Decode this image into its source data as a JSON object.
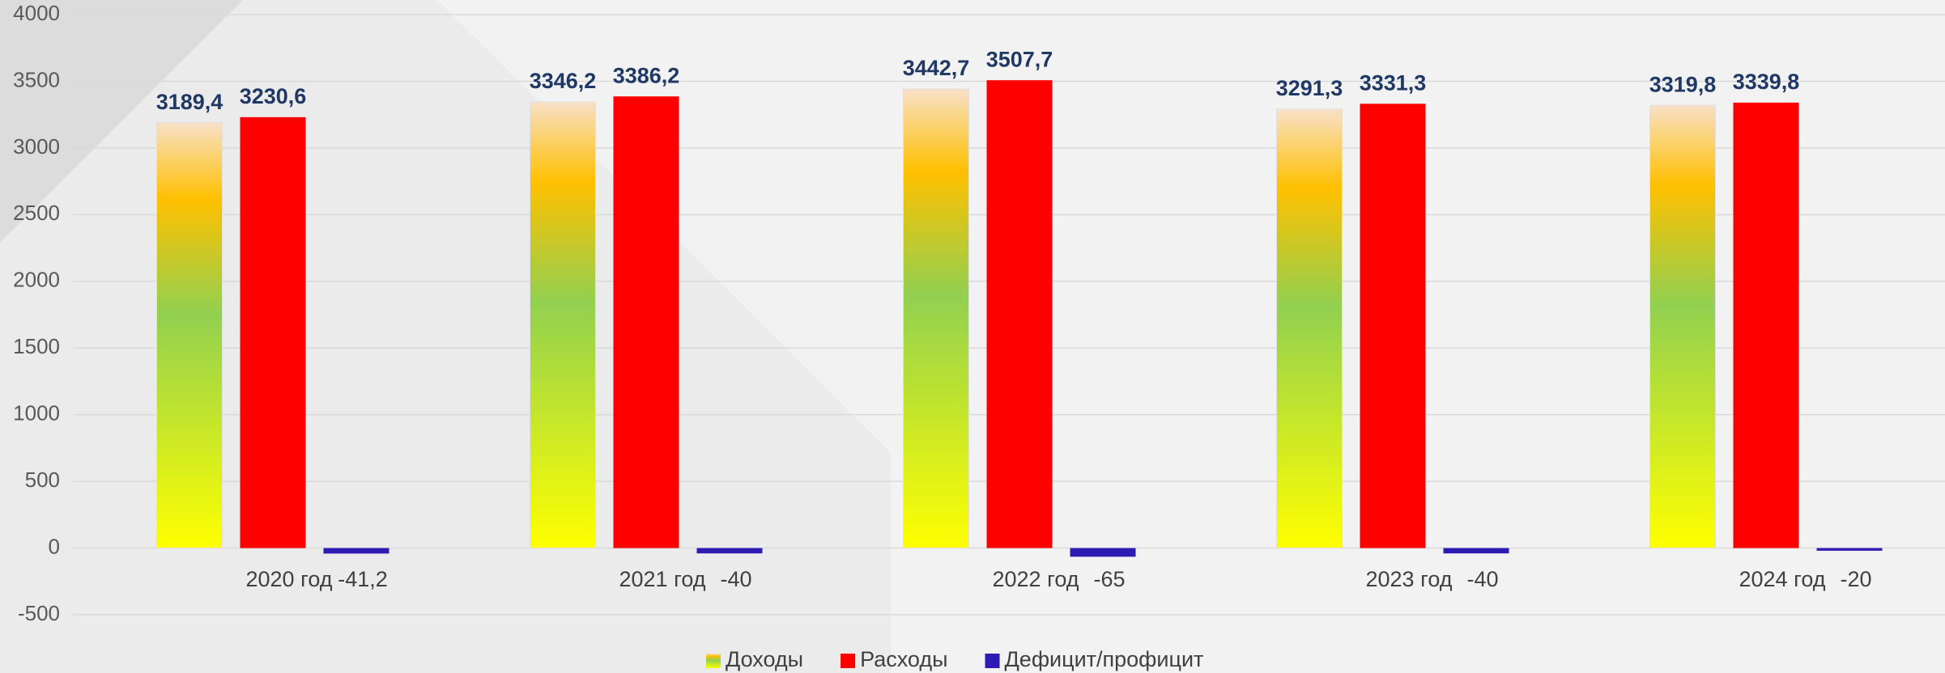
{
  "chart_data": {
    "type": "bar",
    "categories": [
      "2020 год",
      "2021 год",
      "2022 год",
      "2023 год",
      "2024 год"
    ],
    "series": [
      {
        "name": "Доходы",
        "color": "#92d050",
        "values": [
          3189.4,
          3346.2,
          3442.7,
          3291.3,
          3319.8
        ],
        "value_labels": [
          "3189,4",
          "3346,2",
          "3442,7",
          "3291,3",
          "3319,8"
        ]
      },
      {
        "name": "Расходы",
        "color": "#ff0000",
        "values": [
          3230.6,
          3386.2,
          3507.7,
          3331.3,
          3339.8
        ],
        "value_labels": [
          "3230,6",
          "3386,2",
          "3507,7",
          "3331,3",
          "3339,8"
        ]
      },
      {
        "name": "Дефицит/профицит",
        "color": "#2e1bb3",
        "values": [
          -41.2,
          -40,
          -65,
          -40,
          -20
        ],
        "value_labels": [
          "-41,2",
          "-40",
          "-65",
          "-40",
          "-20"
        ]
      }
    ],
    "ylim": [
      -500,
      4000
    ],
    "yticks": [
      -500,
      0,
      500,
      1000,
      1500,
      2000,
      2500,
      3000,
      3500,
      4000
    ],
    "grid": true,
    "legend": "bottom"
  }
}
